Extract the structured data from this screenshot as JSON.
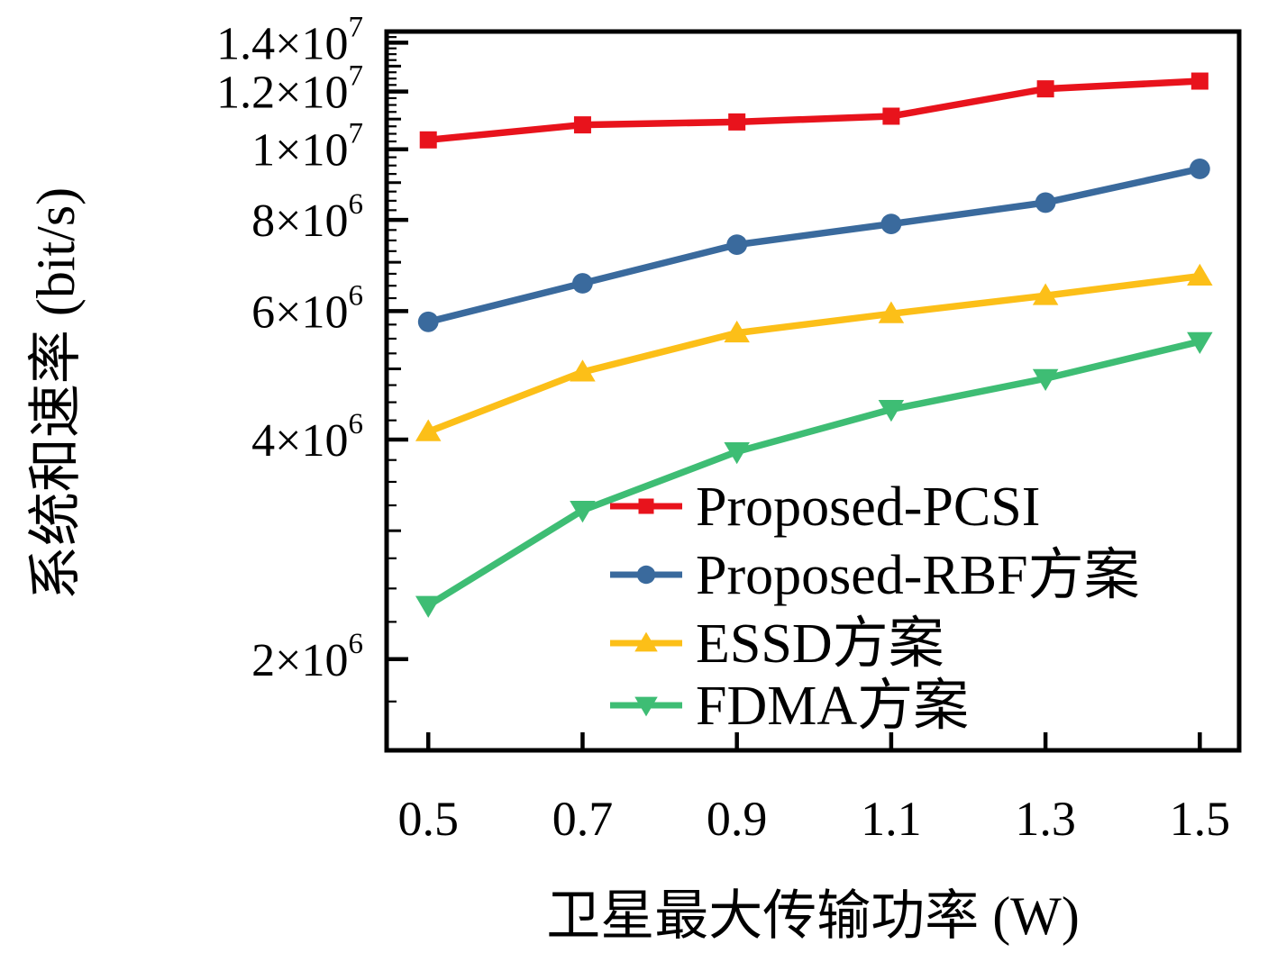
{
  "chart_data": {
    "type": "line",
    "title": "",
    "xlabel": "卫星最大传输功率 (W)",
    "ylabel": "系统和速率 (bit/s)",
    "x": [
      0.5,
      0.7,
      0.9,
      1.1,
      1.3,
      1.5
    ],
    "xlim": [
      0.446,
      1.551
    ],
    "ylim": [
      1500000,
      14500000
    ],
    "yscale": "log",
    "grid": false,
    "legend_position": "lower-right-inside",
    "xticks": {
      "values": [
        0.5,
        0.7,
        0.9,
        1.1,
        1.3,
        1.5
      ],
      "labels": [
        "0.5",
        "0.7",
        "0.9",
        "1.1",
        "1.3",
        "1.5"
      ]
    },
    "yticks": [
      {
        "value": 2000000,
        "base": "2×10",
        "exp": "6"
      },
      {
        "value": 4000000,
        "base": "4×10",
        "exp": "6"
      },
      {
        "value": 6000000,
        "base": "6×10",
        "exp": "6"
      },
      {
        "value": 8000000,
        "base": "8×10",
        "exp": "6"
      },
      {
        "value": 10000000,
        "base": "1×10",
        "exp": "7"
      },
      {
        "value": 12000000,
        "base": "1.2×10",
        "exp": "7"
      },
      {
        "value": 14000000,
        "base": "1.4×10",
        "exp": "7"
      }
    ],
    "y_minor_step": 250000,
    "y_medium_ticks": [
      3000000,
      5000000,
      7000000,
      9000000,
      11000000,
      13000000
    ],
    "series": [
      {
        "name": "Proposed-PCSI",
        "color": "#e8131c",
        "marker": "square",
        "values": [
          10300000,
          10800000,
          10900000,
          11100000,
          12100000,
          12400000
        ]
      },
      {
        "name": "Proposed-RBF方案",
        "color": "#3a6a9d",
        "marker": "circle",
        "values": [
          5800000,
          6550000,
          7400000,
          7900000,
          8450000,
          9400000
        ]
      },
      {
        "name": "ESSD方案",
        "color": "#fcbf18",
        "marker": "triangle-up",
        "values": [
          4100000,
          4950000,
          5600000,
          5950000,
          6300000,
          6700000
        ]
      },
      {
        "name": "FDMA方案",
        "color": "#3ebd74",
        "marker": "triangle-down",
        "values": [
          2370000,
          3200000,
          3850000,
          4400000,
          4850000,
          5450000
        ]
      }
    ],
    "axis_color": "#000000"
  }
}
